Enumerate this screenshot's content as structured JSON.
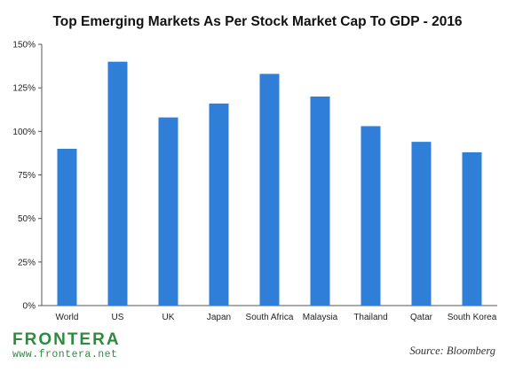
{
  "chart_data": {
    "type": "bar",
    "title": "Top Emerging Markets As Per Stock Market Cap To GDP - 2016",
    "categories": [
      "World",
      "US",
      "UK",
      "Japan",
      "South Africa",
      "Malaysia",
      "Thailand",
      "Qatar",
      "South Korea"
    ],
    "values": [
      90,
      140,
      108,
      116,
      133,
      120,
      103,
      94,
      88
    ],
    "ylim": [
      0,
      150
    ],
    "yticks": [
      0,
      25,
      50,
      75,
      100,
      125,
      150
    ],
    "ytick_labels": [
      "0%",
      "25%",
      "50%",
      "75%",
      "100%",
      "125%",
      "150%"
    ],
    "bar_color": "#2f7fd9",
    "gridlines": false,
    "legend": "none"
  },
  "footer": {
    "logo_text": "FRONTERA",
    "logo_url": "www.frontera.net",
    "source": "Source: Bloomberg"
  },
  "colors": {
    "brand": "#2e8b3e",
    "bar": "#2f7fd9"
  }
}
